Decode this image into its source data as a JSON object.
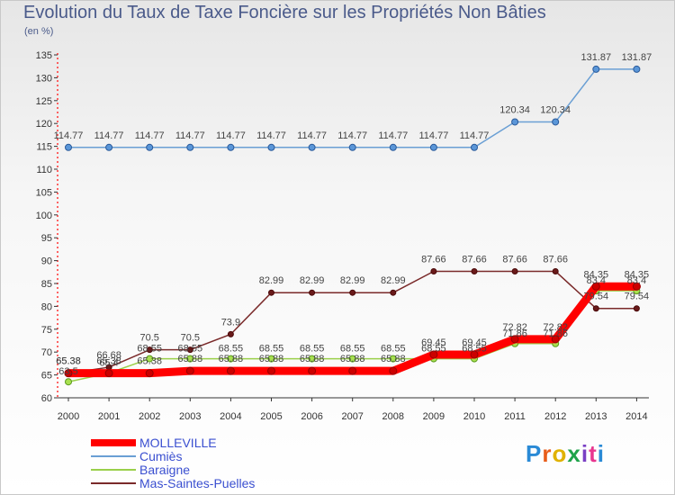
{
  "header": {
    "title": "Evolution du Taux de Taxe Foncière sur les Propriétés Non Bâties",
    "unit": "(en %)"
  },
  "logo": {
    "text": "Proxiti",
    "colors": [
      "#2a8ad6",
      "#e85d1a",
      "#e0b200",
      "#1fa34a",
      "#7a3fc4",
      "#e8368f",
      "#2a8ad6"
    ]
  },
  "chart_data": {
    "type": "line",
    "categories": [
      "2000",
      "2001",
      "2002",
      "2003",
      "2004",
      "2005",
      "2006",
      "2007",
      "2008",
      "2009",
      "2010",
      "2011",
      "2012",
      "2013",
      "2014"
    ],
    "ylim": [
      60,
      135
    ],
    "yticks": [
      60,
      65,
      70,
      75,
      80,
      85,
      90,
      95,
      100,
      105,
      110,
      115,
      120,
      125,
      130,
      135
    ],
    "grid": false,
    "legend_position": "bottom-left",
    "series": [
      {
        "name": "Cumiès",
        "color": "#6a9fd4",
        "values": [
          114.77,
          114.77,
          114.77,
          114.77,
          114.77,
          114.77,
          114.77,
          114.77,
          114.77,
          114.77,
          114.77,
          120.34,
          120.34,
          131.87,
          131.87
        ],
        "labels": [
          "114.77",
          "114.77",
          "114.77",
          "114.77",
          "114.77",
          "114.77",
          "114.77",
          "114.77",
          "114.77",
          "114.77",
          "114.77",
          "120.34",
          "120.34",
          "131.87",
          "131.87"
        ]
      },
      {
        "name": "Mas-Saintes-Puelles",
        "color": "#7a2a2a",
        "values": [
          65.38,
          66.68,
          70.5,
          70.5,
          73.9,
          82.99,
          82.99,
          82.99,
          82.99,
          87.66,
          87.66,
          87.66,
          87.66,
          79.54,
          79.54
        ],
        "labels": [
          "65.38",
          "66.68",
          "70.5",
          "70.5",
          "73.9",
          "82.99",
          "82.99",
          "82.99",
          "82.99",
          "87.66",
          "87.66",
          "87.66",
          "87.66",
          "79.54",
          "79.54"
        ]
      },
      {
        "name": "Baraigne",
        "color": "#9ad04a",
        "values": [
          63.5,
          65.4,
          68.55,
          68.55,
          68.55,
          68.55,
          68.55,
          68.55,
          68.55,
          68.55,
          68.55,
          71.86,
          71.86,
          83.4,
          83.4
        ],
        "labels": [
          "63.5",
          "65.4",
          "68.55",
          "68.55",
          "68.55",
          "68.55",
          "68.55",
          "68.55",
          "68.55",
          "68.55",
          "68.55",
          "71.86",
          "71.86",
          "83.4",
          "83.4"
        ]
      },
      {
        "name": "MOLLEVILLE",
        "color": "#ff0000",
        "values": [
          65.38,
          65.38,
          65.38,
          65.88,
          65.88,
          65.88,
          65.88,
          65.88,
          65.88,
          69.45,
          69.45,
          72.82,
          72.82,
          84.35,
          84.35
        ],
        "labels": [
          "65.38",
          "65.38",
          "65.38",
          "65.88",
          "65.88",
          "65.88",
          "65.88",
          "65.88",
          "65.88",
          "69.45",
          "69.45",
          "72.82",
          "72.82",
          "84.35",
          "84.35"
        ]
      }
    ],
    "legend": [
      {
        "name": "MOLLEVILLE",
        "color": "#ff0000",
        "width": 8
      },
      {
        "name": "Cumiès",
        "color": "#6a9fd4",
        "width": 2
      },
      {
        "name": "Baraigne",
        "color": "#9ad04a",
        "width": 2
      },
      {
        "name": "Mas-Saintes-Puelles",
        "color": "#7a2a2a",
        "width": 2
      }
    ]
  }
}
